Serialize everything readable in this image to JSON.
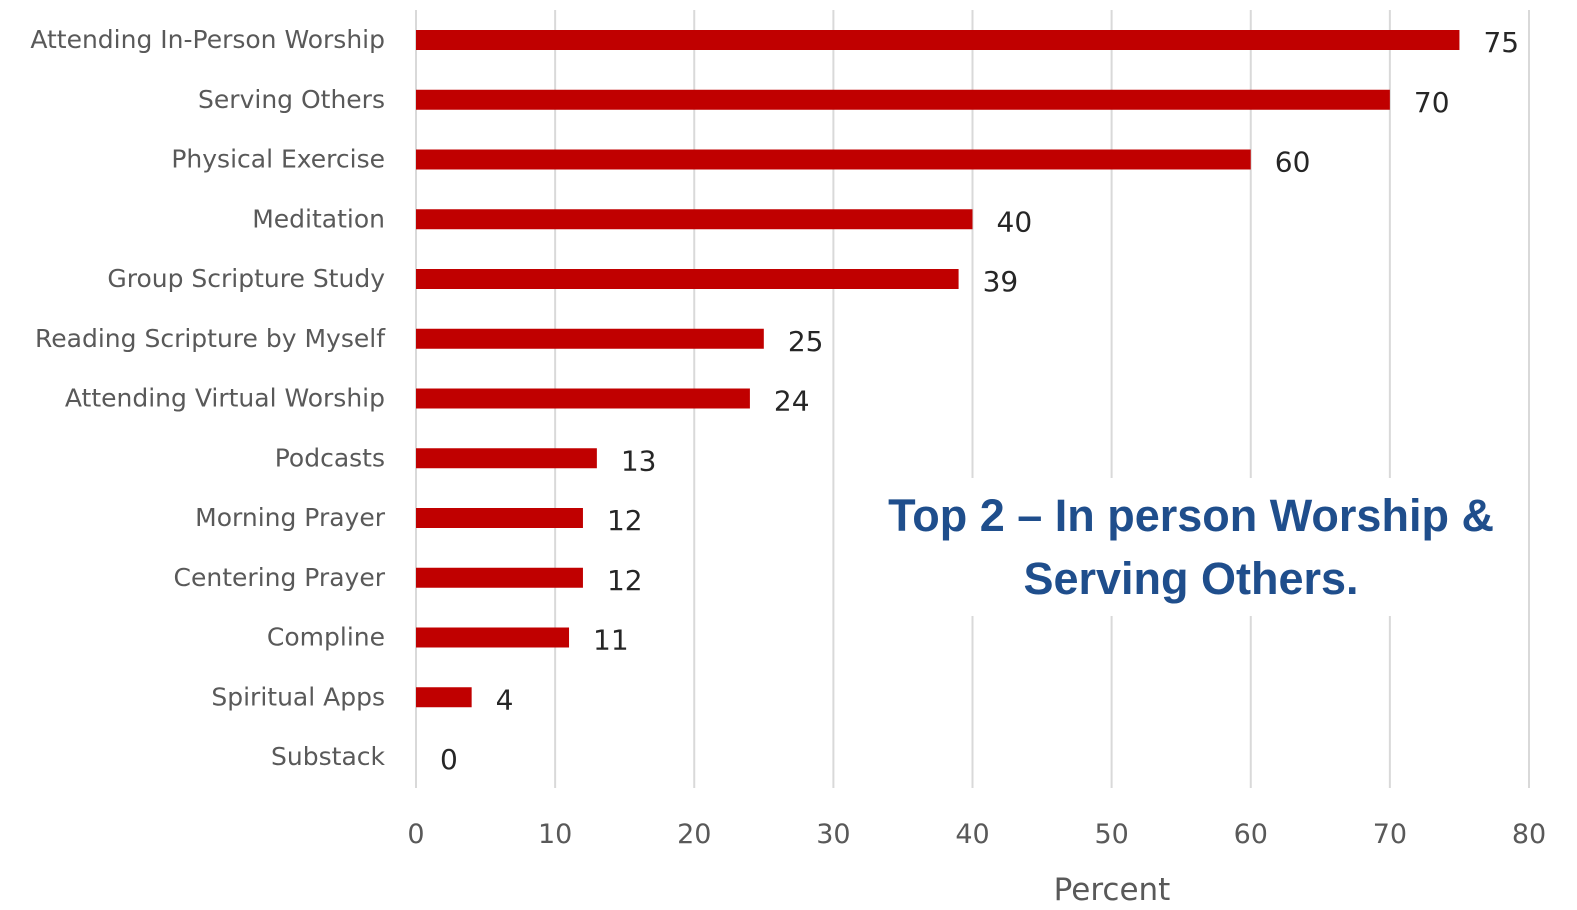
{
  "chart_data": {
    "type": "bar",
    "orientation": "horizontal",
    "categories": [
      "Attending In-Person Worship",
      "Serving Others",
      "Physical Exercise",
      "Meditation",
      "Group Scripture Study",
      "Reading Scripture by Myself",
      "Attending Virtual Worship",
      "Podcasts",
      "Morning Prayer",
      "Centering Prayer",
      "Compline",
      "Spiritual Apps",
      "Substack"
    ],
    "values": [
      75,
      70,
      60,
      40,
      39,
      25,
      24,
      13,
      12,
      12,
      11,
      4,
      0
    ],
    "xlabel": "Percent",
    "ylabel": "",
    "xlim": [
      0,
      80
    ],
    "xticks": [
      0,
      10,
      20,
      30,
      40,
      50,
      60,
      70,
      80
    ],
    "grid": true,
    "bar_color": "#c00000",
    "data_labels": true
  },
  "annotation": {
    "line1": "Top 2 – In person Worship &",
    "line2": "Serving Others.",
    "color": "#1f4e8c"
  }
}
